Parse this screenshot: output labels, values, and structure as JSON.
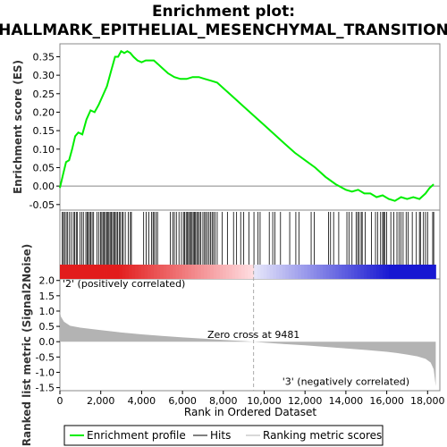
{
  "chart_data": {
    "type": "line",
    "title_line1": "Enrichment plot:",
    "title_line2": "HALLMARK_EPITHELIAL_MESENCHYMAL_TRANSITION",
    "xlabel": "Rank in Ordered Dataset",
    "ylabel_top": "Enrichment score (ES)",
    "ylabel_bottom": "Ranked list metric (Signal2Noise)",
    "xlim": [
      0,
      18600
    ],
    "x_ticks": [
      0,
      2000,
      4000,
      6000,
      8000,
      10000,
      12000,
      14000,
      16000,
      18000
    ],
    "x_tick_labels": [
      "0",
      "2,000",
      "4,000",
      "6,000",
      "8,000",
      "10,000",
      "12,000",
      "14,000",
      "16,000",
      "18,000"
    ],
    "es_ylim": [
      -0.065,
      0.385
    ],
    "es_ticks": [
      -0.05,
      0.0,
      0.05,
      0.1,
      0.15,
      0.2,
      0.25,
      0.3,
      0.35
    ],
    "es_tick_labels": [
      "-0.05",
      "0.00",
      "0.05",
      "0.10",
      "0.15",
      "0.20",
      "0.25",
      "0.30",
      "0.35"
    ],
    "metric_ylim": [
      -1.6,
      2.05
    ],
    "metric_ticks": [
      -1.5,
      -1.0,
      -0.5,
      0.0,
      0.5,
      1.0,
      1.5,
      2.0
    ],
    "metric_tick_labels": [
      "-1.5",
      "-1.0",
      "-0.5",
      "0.0",
      "0.5",
      "1.0",
      "1.5",
      "2.0"
    ],
    "positive_label": "'2' (positively correlated)",
    "negative_label": "'3' (negatively correlated)",
    "zero_cross_label": "Zero cross at 9481",
    "zero_cross": 9481,
    "n_genes": 18400,
    "enrichment_profile": {
      "x": [
        0,
        150,
        300,
        450,
        600,
        750,
        900,
        1100,
        1300,
        1500,
        1700,
        1900,
        2100,
        2300,
        2500,
        2700,
        2850,
        3000,
        3150,
        3300,
        3450,
        3600,
        3800,
        4000,
        4200,
        4400,
        4600,
        4800,
        5000,
        5300,
        5600,
        5900,
        6200,
        6500,
        6800,
        7100,
        7400,
        7700,
        8000,
        8500,
        9000,
        9500,
        10000,
        10500,
        11000,
        11500,
        12000,
        12500,
        13000,
        13500,
        14000,
        14300,
        14600,
        14900,
        15200,
        15500,
        15800,
        16100,
        16400,
        16700,
        17000,
        17300,
        17600,
        17900,
        18100,
        18300
      ],
      "y": [
        -0.005,
        0.03,
        0.065,
        0.07,
        0.1,
        0.135,
        0.145,
        0.14,
        0.18,
        0.205,
        0.2,
        0.22,
        0.245,
        0.27,
        0.31,
        0.35,
        0.35,
        0.365,
        0.36,
        0.365,
        0.36,
        0.35,
        0.34,
        0.335,
        0.34,
        0.34,
        0.34,
        0.33,
        0.32,
        0.305,
        0.295,
        0.29,
        0.29,
        0.295,
        0.295,
        0.29,
        0.285,
        0.28,
        0.265,
        0.24,
        0.215,
        0.19,
        0.165,
        0.14,
        0.115,
        0.09,
        0.07,
        0.05,
        0.025,
        0.005,
        -0.01,
        -0.015,
        -0.01,
        -0.02,
        -0.02,
        -0.03,
        -0.025,
        -0.035,
        -0.04,
        -0.03,
        -0.035,
        -0.03,
        -0.035,
        -0.02,
        -0.005,
        0.005
      ]
    },
    "metric_profile": {
      "x": [
        0,
        50,
        200,
        500,
        1000,
        2000,
        3000,
        4000,
        5000,
        6000,
        7000,
        8000,
        9000,
        9481,
        10000,
        11000,
        12000,
        13000,
        14000,
        15000,
        16000,
        16500,
        17000,
        17500,
        17900,
        18150,
        18300,
        18400
      ],
      "y": [
        1.0,
        0.82,
        0.65,
        0.52,
        0.46,
        0.38,
        0.3,
        0.24,
        0.19,
        0.14,
        0.1,
        0.06,
        0.02,
        0.0,
        -0.03,
        -0.08,
        -0.12,
        -0.17,
        -0.22,
        -0.27,
        -0.33,
        -0.37,
        -0.42,
        -0.48,
        -0.56,
        -0.68,
        -0.9,
        -1.45
      ]
    },
    "hits": [
      120,
      170,
      230,
      310,
      380,
      470,
      560,
      660,
      720,
      800,
      860,
      980,
      1070,
      1150,
      1270,
      1330,
      1390,
      1450,
      1510,
      1580,
      1650,
      1820,
      1910,
      1990,
      2050,
      2110,
      2170,
      2230,
      2290,
      2350,
      2400,
      2460,
      2520,
      2580,
      2640,
      2700,
      2760,
      2820,
      2900,
      2960,
      3050,
      3100,
      3200,
      3350,
      3450,
      3500,
      4100,
      4220,
      4350,
      4480,
      4560,
      4610,
      4700,
      4780,
      5400,
      5520,
      5600,
      5700,
      5830,
      5950,
      6050,
      6100,
      6180,
      6240,
      6300,
      6350,
      6410,
      6470,
      6530,
      6590,
      6640,
      6700,
      6760,
      6830,
      6900,
      7000,
      7080,
      7140,
      7220,
      7300,
      7380,
      7450,
      7520,
      7600,
      7700,
      7950,
      8200,
      8500,
      8650,
      8850,
      9000,
      9250,
      9500,
      9700,
      9800,
      10250,
      10420,
      10520,
      10800,
      11250,
      11550,
      11700,
      12300,
      12450,
      13150,
      13250,
      13400,
      13650,
      14050,
      14150,
      14300,
      14500,
      14580,
      14650,
      14750,
      14800,
      14950,
      15250,
      15450,
      15550,
      15700,
      15800,
      15850,
      15900,
      16000,
      16200,
      16350,
      16500,
      16600,
      16700,
      16800,
      16950,
      17050,
      17250,
      17450,
      17600,
      17650,
      17800,
      17900,
      18000,
      18250,
      18300
    ]
  },
  "legend": {
    "items": [
      "Enrichment profile",
      "Hits",
      "Ranking metric scores"
    ]
  },
  "colors": {
    "enrichment_line": "#00ee00",
    "hit": "#000000",
    "metric_fill": "#b3b3b3",
    "positive": "#e31a1c",
    "negative": "#2020d0"
  }
}
